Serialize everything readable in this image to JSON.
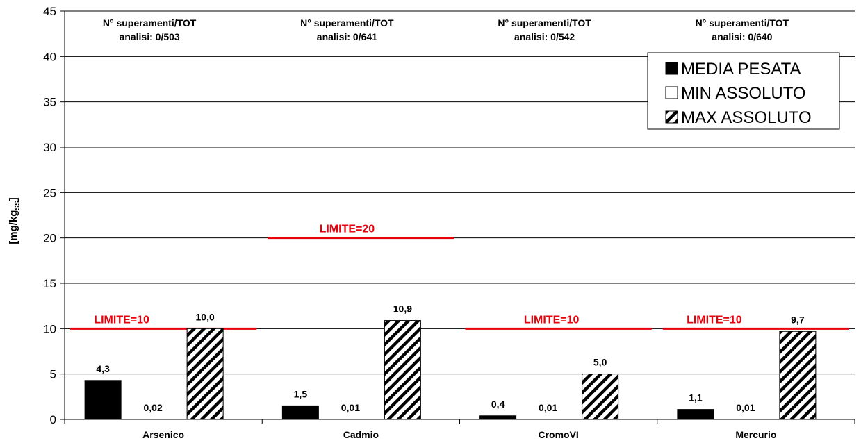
{
  "chart_data": {
    "type": "bar",
    "ylabel": "[mg/kg",
    "ylabel_subscript": "SS",
    "ylabel_close": "]",
    "ylim": [
      0,
      45
    ],
    "yticks": [
      0,
      5,
      10,
      15,
      20,
      25,
      30,
      35,
      40,
      45
    ],
    "grid": true,
    "legend_position": "top-right",
    "categories": [
      "Arsenico",
      "Cadmio",
      "CromoVI",
      "Mercurio"
    ],
    "series": [
      {
        "name": "MEDIA PESATA",
        "fill": "solid",
        "color": "#000000",
        "values": [
          4.3,
          1.5,
          0.4,
          1.1
        ],
        "labels": [
          "4,3",
          "1,5",
          "0,4",
          "1,1"
        ]
      },
      {
        "name": "MIN ASSOLUTO",
        "fill": "empty",
        "color": "#ffffff",
        "values": [
          0.02,
          0.01,
          0.01,
          0.01
        ],
        "labels": [
          "0,02",
          "0,01",
          "0,01",
          "0,01"
        ]
      },
      {
        "name": "MAX ASSOLUTO",
        "fill": "hatched",
        "color": "#000000",
        "values": [
          10.0,
          10.9,
          5.0,
          9.7
        ],
        "labels": [
          "10,0",
          "10,9",
          "5,0",
          "9,7"
        ]
      }
    ],
    "limits": [
      {
        "category": "Arsenico",
        "value": 10,
        "label": "LIMITE=10"
      },
      {
        "category": "Cadmio",
        "value": 20,
        "label": "LIMITE=20"
      },
      {
        "category": "CromoVI",
        "value": 10,
        "label": "LIMITE=10"
      },
      {
        "category": "Mercurio",
        "value": 10,
        "label": "LIMITE=10"
      }
    ],
    "limit_color": "#e8000b",
    "annotations": [
      {
        "category": "Arsenico",
        "line1": "N° superamenti/TOT",
        "line2": "analisi: 0/503"
      },
      {
        "category": "Cadmio",
        "line1": "N° superamenti/TOT",
        "line2": "analisi: 0/641"
      },
      {
        "category": "CromoVI",
        "line1": "N° superamenti/TOT",
        "line2": "analisi: 0/542"
      },
      {
        "category": "Mercurio",
        "line1": "N° superamenti/TOT",
        "line2": "analisi: 0/640"
      }
    ]
  }
}
